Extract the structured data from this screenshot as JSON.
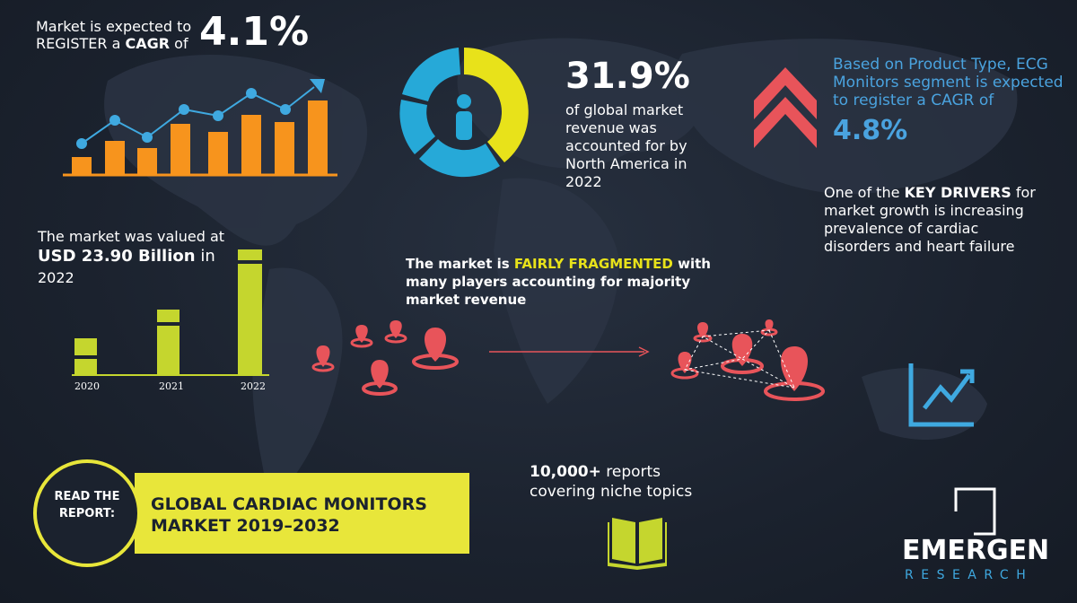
{
  "cagr_block": {
    "line_1": "Market is expected to",
    "line_2_start": "REGISTER a",
    "line_2_bold": "CAGR",
    "line_2_end": "of",
    "value": "4.1%"
  },
  "share_block": {
    "value": "31.9%",
    "text": "of global market revenue was accounted for by North America in 2022"
  },
  "segment_block": {
    "text": "Based on Product Type, ECG Monitors segment is expected to register a CAGR of",
    "value": "4.8%"
  },
  "drivers_block": {
    "start": "One of the",
    "bold": "KEY DRIVERS",
    "end": "for market growth is increasing prevalence of cardiac disorders and heart failure"
  },
  "valuation_block": {
    "line_1": "The market was valued at",
    "value": "USD 23.90 Billion",
    "after_value": "in",
    "year": "2022",
    "bar_labels": [
      "2020",
      "2021",
      "2022"
    ]
  },
  "fragmentation_block": {
    "start": "The market is",
    "highlight": "FAIRLY FRAGMENTED",
    "end": "with many players accounting for majority market revenue"
  },
  "report_block": {
    "badge": "READ THE REPORT:",
    "title": "GLOBAL CARDIAC MONITORS MARKET 2019–2032"
  },
  "reports_block": {
    "bold": "10,000+",
    "text": "reports covering niche topics"
  },
  "logo": {
    "name": "EMERGEN",
    "sub": "RESEARCH"
  }
}
